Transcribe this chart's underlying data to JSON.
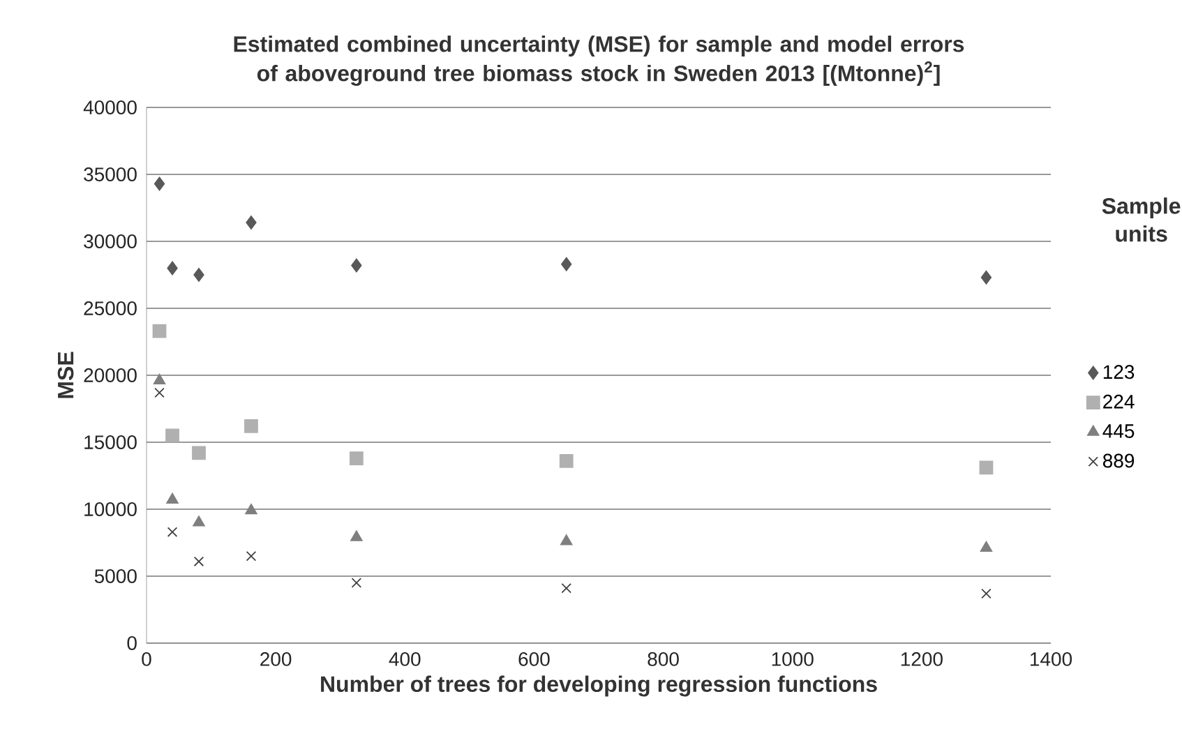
{
  "chart_data": {
    "type": "scatter",
    "title": "Estimated combined uncertainty (MSE) for sample and model errors of aboveground tree biomass stock in Sweden 2013 [(Mtonne)$^{2}$]",
    "xlabel": "Number of trees for developing regression functions",
    "ylabel": "MSE",
    "legend_title": "Sample units",
    "x": [
      20,
      40,
      81,
      162,
      325,
      650,
      1300
    ],
    "series": [
      {
        "name": "123",
        "color": "#595959",
        "marker": "diamond",
        "values": [
          34300,
          28000,
          27500,
          31400,
          28200,
          28300,
          27300
        ]
      },
      {
        "name": "224",
        "color": "#b0b0b0",
        "marker": "square",
        "values": [
          23300,
          15500,
          14200,
          16200,
          13800,
          13600,
          13100
        ]
      },
      {
        "name": "445",
        "color": "#7f7f7f",
        "marker": "triangle",
        "values": [
          19600,
          10700,
          9000,
          9900,
          7900,
          7600,
          7100
        ]
      },
      {
        "name": "889",
        "color": "#404040",
        "marker": "cross",
        "values": [
          18700,
          8300,
          6100,
          6500,
          4500,
          4100,
          3700
        ]
      }
    ],
    "xlim": [
      0,
      1400
    ],
    "xticks": [
      0,
      200,
      400,
      600,
      800,
      1000,
      1200,
      1400
    ],
    "ylim": [
      0,
      40000
    ],
    "yticks": [
      0,
      5000,
      10000,
      15000,
      20000,
      25000,
      30000,
      35000,
      40000
    ],
    "grid": "y",
    "legend": "right"
  }
}
